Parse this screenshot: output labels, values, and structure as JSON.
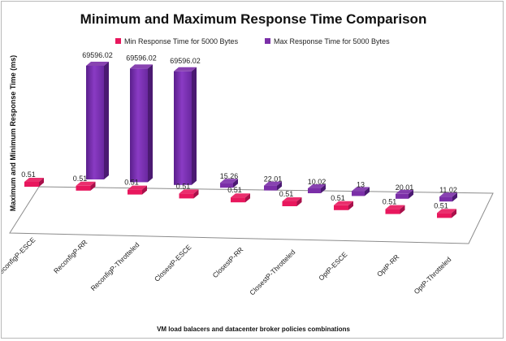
{
  "chart_data": {
    "type": "bar",
    "title": "Minimum and Maximum Response Time Comparison",
    "xlabel": "VM load balacers and datacenter broker policies combinations",
    "ylabel": "Maximum and Minimum Response Time (ms)",
    "legend_position": "top",
    "categories": [
      "ReconfigP-ESCE",
      "ReconfigP-RR",
      "ReconfigP-Throtteled",
      "ClosestP-ESCE",
      "ClosestP-RR",
      "ClosestP-Throtteled",
      "OptP-ESCE",
      "OptP-RR",
      "OptP-Throtteled"
    ],
    "series": [
      {
        "name": "Min Response Time for 5000 Bytes",
        "color": "#e8175d",
        "values": [
          0.51,
          0.51,
          0.51,
          0.51,
          0.51,
          0.51,
          0.51,
          0.51,
          0.51
        ],
        "labels": [
          "0.51",
          "0.51",
          "0.51",
          "0.51",
          "0.51",
          "0.51",
          "0.51",
          "0.51",
          "0.51"
        ]
      },
      {
        "name": "Max Response Time for 5000 Bytes",
        "color": "#7b2fa8",
        "values": [
          69596.02,
          69596.02,
          69596.02,
          15.26,
          22.01,
          10.02,
          13,
          20.01,
          11.02
        ],
        "labels": [
          "69596.02",
          "69596.02",
          "69596.02",
          "15.26",
          "22.01",
          "10.02",
          "13",
          "20.01",
          "11.02"
        ]
      }
    ],
    "grid": false
  }
}
